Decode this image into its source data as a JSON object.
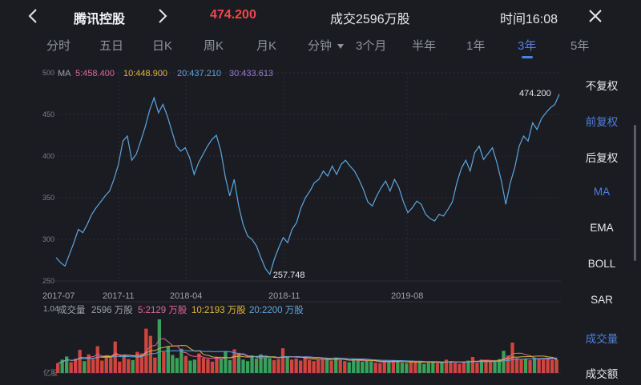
{
  "header": {
    "stock_name": "腾讯控股",
    "price": "474.200",
    "volume": "成交2596万股",
    "time": "时间16:08",
    "price_color": "#f04848"
  },
  "tabs": [
    {
      "label": "分时",
      "active": false
    },
    {
      "label": "五日",
      "active": false
    },
    {
      "label": "日K",
      "active": false
    },
    {
      "label": "周K",
      "active": false
    },
    {
      "label": "月K",
      "active": false
    },
    {
      "label": "分钟",
      "active": false,
      "dropdown": true
    },
    {
      "label": "3个月",
      "active": false
    },
    {
      "label": "半年",
      "active": false
    },
    {
      "label": "1年",
      "active": false
    },
    {
      "label": "3年",
      "active": true
    },
    {
      "label": "5年",
      "active": false
    }
  ],
  "side_menu": [
    {
      "label": "不复权",
      "blue": false
    },
    {
      "label": "前复权",
      "blue": true
    },
    {
      "label": "后复权",
      "blue": false
    },
    {
      "label": "MA",
      "blue": true
    },
    {
      "label": "EMA",
      "blue": false
    },
    {
      "label": "BOLL",
      "blue": false
    },
    {
      "label": "SAR",
      "blue": false
    },
    {
      "label": "成交量",
      "blue": true
    },
    {
      "label": "成交额",
      "blue": false
    }
  ],
  "ma_legend": {
    "label": "MA",
    "items": [
      {
        "text": "5:458.400",
        "color": "#e0659a"
      },
      {
        "text": "10:448.900",
        "color": "#e3b33b"
      },
      {
        "text": "20:437.210",
        "color": "#5ba6e0"
      },
      {
        "text": "30:433.613",
        "color": "#9a7ae0"
      }
    ]
  },
  "vol_legend": {
    "label": "成交量",
    "value": "2596 万股",
    "items": [
      {
        "text": "5:2129 万股",
        "color": "#e0659a"
      },
      {
        "text": "10:2193 万股",
        "color": "#e3b33b"
      },
      {
        "text": "20:2200 万股",
        "color": "#5ba6e0"
      }
    ],
    "top_tick": "1.04",
    "bottom_tick": "亿股"
  },
  "chart_data": {
    "type": "line",
    "ylim": [
      250,
      500
    ],
    "yticks": [
      "500",
      "450",
      "400",
      "350",
      "300",
      "250"
    ],
    "xticks": [
      "2017-07",
      "2017-11",
      "2018-04",
      "2018-11",
      "2019-08"
    ],
    "annotations": [
      {
        "text": "474.200",
        "x": "latest",
        "y": 474.2
      },
      {
        "text": "257.748",
        "x": "2018-10",
        "y": 257.748
      }
    ],
    "series": [
      {
        "color": "#5ba6e0",
        "values": [
          278,
          272,
          268,
          282,
          296,
          312,
          308,
          318,
          330,
          338,
          345,
          352,
          358,
          372,
          390,
          418,
          424,
          395,
          402,
          418,
          435,
          455,
          470,
          452,
          462,
          448,
          430,
          412,
          406,
          410,
          398,
          378,
          392,
          402,
          412,
          420,
          425,
          406,
          375,
          352,
          372,
          340,
          318,
          304,
          300,
          292,
          278,
          265,
          258,
          276,
          290,
          302,
          296,
          312,
          320,
          338,
          350,
          358,
          368,
          372,
          382,
          376,
          388,
          378,
          390,
          395,
          388,
          382,
          372,
          360,
          345,
          340,
          352,
          362,
          370,
          358,
          372,
          362,
          345,
          332,
          338,
          346,
          342,
          330,
          325,
          322,
          330,
          328,
          336,
          345,
          368,
          385,
          395,
          382,
          404,
          412,
          396,
          403,
          410,
          392,
          370,
          342,
          368,
          386,
          412,
          424,
          418,
          440,
          432,
          445,
          452,
          458,
          462,
          474.2
        ]
      }
    ],
    "volume": {
      "unit": "万股",
      "values": [
        1900,
        2600,
        3200,
        2100,
        2800,
        4500,
        2300,
        3600,
        2700,
        5200,
        2400,
        3100,
        2900,
        6100,
        2200,
        3400,
        2700,
        2500,
        4100,
        3800,
        8600,
        7200,
        3000,
        10400,
        4100,
        5200,
        3500,
        2900,
        4700,
        3300,
        2400,
        2600,
        3800,
        2900,
        2700,
        2200,
        3100,
        2800,
        4200,
        2500,
        4600,
        3900,
        2600,
        2300,
        3300,
        2800,
        3600,
        3000,
        2900,
        2500,
        2700,
        4800,
        3100,
        2600,
        2800,
        2400,
        3200,
        2500,
        2300,
        2600,
        2900,
        2700,
        2400,
        3000,
        2500,
        2300,
        2100,
        2700,
        2600,
        2200,
        2400,
        2300,
        2000,
        1900,
        2300,
        2100,
        2500,
        2200,
        2000,
        1900,
        2400,
        2100,
        2300,
        1800,
        2000,
        2200,
        1900,
        2100,
        2600,
        2300,
        2000,
        1800,
        2200,
        2400,
        3100,
        2000,
        2600,
        2300,
        2200,
        2500,
        2700,
        4300,
        3400,
        5900,
        2900,
        2600,
        2800,
        2500,
        3000,
        2700,
        2600,
        2800,
        2500,
        2596
      ]
    }
  }
}
